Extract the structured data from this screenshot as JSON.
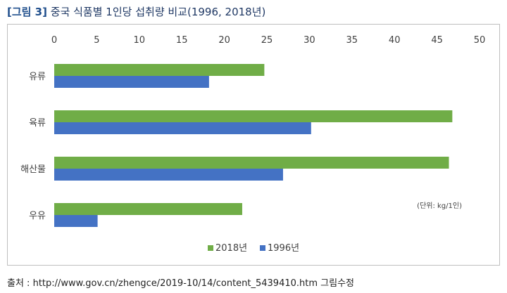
{
  "figure": {
    "tag": "[그림 3]",
    "title": "중국 식품별 1인당 섭취량 비교(1996, 2018년)"
  },
  "source": {
    "label": "출처 : ",
    "text": "http://www.gov.cn/zhengce/2019-10/14/content_5439410.htm  그림수정"
  },
  "colors": {
    "series_2018": "#70ad47",
    "series_1996": "#4472c4",
    "axis_text": "#404040",
    "frame": "#bfbfbf"
  },
  "chart_data": {
    "type": "bar",
    "orientation": "horizontal",
    "title": "",
    "xlabel": "",
    "ylabel": "",
    "unit_note": "(단위: kg/1인)",
    "categories": [
      "유류",
      "육류",
      "해산물",
      "우유"
    ],
    "series": [
      {
        "name": "2018년",
        "values": [
          24.7,
          46.8,
          46.4,
          22.1
        ],
        "color": "#70ad47"
      },
      {
        "name": "1996년",
        "values": [
          18.2,
          30.2,
          26.9,
          5.1
        ],
        "color": "#4472c4"
      }
    ],
    "xlim": [
      0,
      50
    ],
    "xticks": [
      0,
      5,
      10,
      15,
      20,
      25,
      30,
      35,
      40,
      45,
      50
    ],
    "grid": false,
    "legend_position": "bottom"
  }
}
